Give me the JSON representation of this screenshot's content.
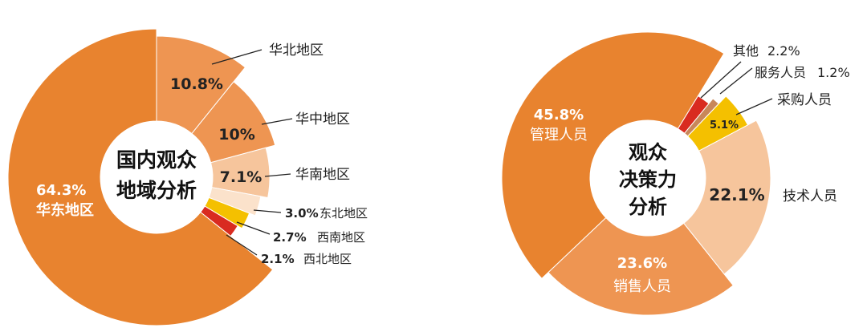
{
  "chart_data": [
    {
      "type": "pie",
      "title": "国内观众地域分析",
      "title_lines": [
        "国内观众",
        "地域分析"
      ],
      "start": "top",
      "direction": "clockwise",
      "slices": [
        {
          "label": "华北地区",
          "value": 10.8,
          "value_label": "10.8%",
          "color": "#EE9552"
        },
        {
          "label": "华中地区",
          "value": 10.0,
          "value_label": "10%",
          "color": "#EE9552"
        },
        {
          "label": "华南地区",
          "value": 7.1,
          "value_label": "7.1%",
          "color": "#F6C59C"
        },
        {
          "label": "东北地区",
          "value": 3.0,
          "value_label": "3.0%",
          "color": "#FBE2CB"
        },
        {
          "label": "西南地区",
          "value": 2.7,
          "value_label": "2.7%",
          "color": "#F4C000"
        },
        {
          "label": "西北地区",
          "value": 2.1,
          "value_label": "2.1%",
          "color": "#D92B20"
        },
        {
          "label": "华东地区",
          "value": 64.3,
          "value_label": "64.3%",
          "color": "#E8832F"
        }
      ]
    },
    {
      "type": "pie",
      "title": "观众决策力分析",
      "title_lines": [
        "观众",
        "决策力",
        "分析"
      ],
      "direction": "clockwise",
      "slices": [
        {
          "label": "技术人员",
          "value": 22.1,
          "value_label": "22.1%",
          "color": "#F6C59C"
        },
        {
          "label": "销售人员",
          "value": 23.6,
          "value_label": "23.6%",
          "color": "#EE9552"
        },
        {
          "label": "管理人员",
          "value": 45.8,
          "value_label": "45.8%",
          "color": "#E8832F"
        },
        {
          "label": "其他",
          "value": 2.2,
          "value_label": "2.2%",
          "color": "#D92B20"
        },
        {
          "label": "服务人员",
          "value": 1.2,
          "value_label": "1.2%",
          "color": "#C8875A"
        },
        {
          "label": "采购人员",
          "value": 5.1,
          "value_label": "5.1%",
          "color": "#F4C000"
        }
      ]
    }
  ]
}
